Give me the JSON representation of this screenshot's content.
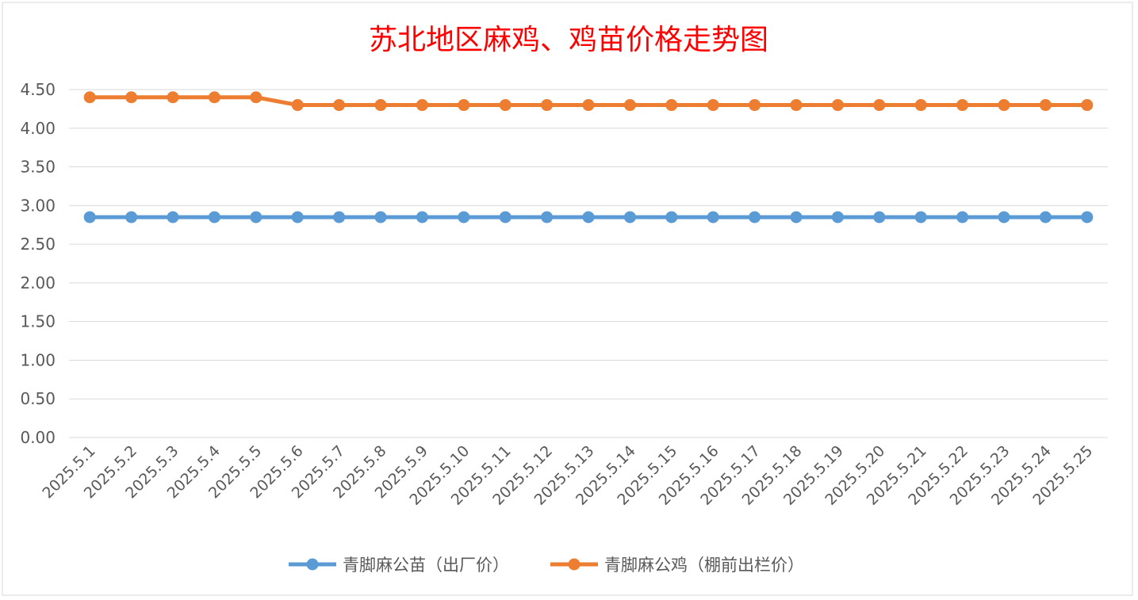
{
  "chart_data": {
    "type": "line",
    "title": "苏北地区麻鸡、鸡苗价格走势图",
    "xlabel": "",
    "ylabel": "",
    "ylim": [
      0,
      4.5
    ],
    "yticks": [
      "0.00",
      "0.50",
      "1.00",
      "1.50",
      "2.00",
      "2.50",
      "3.00",
      "3.50",
      "4.00",
      "4.50"
    ],
    "grid": true,
    "legend_position": "bottom",
    "categories": [
      "2025.5.1",
      "2025.5.2",
      "2025.5.3",
      "2025.5.4",
      "2025.5.5",
      "2025.5.6",
      "2025.5.7",
      "2025.5.8",
      "2025.5.9",
      "2025.5.10",
      "2025.5.11",
      "2025.5.12",
      "2025.5.13",
      "2025.5.14",
      "2025.5.15",
      "2025.5.16",
      "2025.5.17",
      "2025.5.18",
      "2025.5.19",
      "2025.5.20",
      "2025.5.21",
      "2025.5.22",
      "2025.5.23",
      "2025.5.24",
      "2025.5.25"
    ],
    "series": [
      {
        "name": "青脚麻公苗（出厂价）",
        "color": "#5b9bd5",
        "values": [
          2.85,
          2.85,
          2.85,
          2.85,
          2.85,
          2.85,
          2.85,
          2.85,
          2.85,
          2.85,
          2.85,
          2.85,
          2.85,
          2.85,
          2.85,
          2.85,
          2.85,
          2.85,
          2.85,
          2.85,
          2.85,
          2.85,
          2.85,
          2.85,
          2.85
        ]
      },
      {
        "name": "青脚麻公鸡（棚前出栏价）",
        "color": "#ed7d31",
        "values": [
          4.4,
          4.4,
          4.4,
          4.4,
          4.4,
          4.3,
          4.3,
          4.3,
          4.3,
          4.3,
          4.3,
          4.3,
          4.3,
          4.3,
          4.3,
          4.3,
          4.3,
          4.3,
          4.3,
          4.3,
          4.3,
          4.3,
          4.3,
          4.3,
          4.3
        ]
      }
    ]
  }
}
